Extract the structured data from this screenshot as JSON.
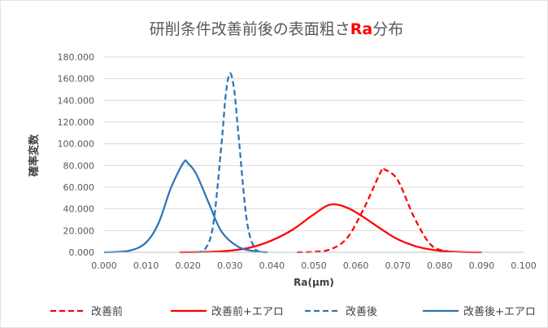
{
  "chart_data": {
    "type": "line",
    "title": "研削条件改善前後の表面粗さ",
    "title_highlight": "Ra",
    "title_suffix": "分布",
    "title_highlight_color": "#ff0000",
    "xlabel": "Ra(μm)",
    "ylabel": "確率変数",
    "xlim": [
      0,
      0.1
    ],
    "ylim": [
      0,
      180
    ],
    "x_ticks": [
      "0.000",
      "0.010",
      "0.020",
      "0.030",
      "0.040",
      "0.050",
      "0.060",
      "0.070",
      "0.080",
      "0.090",
      "0.100"
    ],
    "y_ticks": [
      "0.000",
      "20.000",
      "40.000",
      "60.000",
      "80.000",
      "100.000",
      "120.000",
      "140.000",
      "160.000",
      "180.000"
    ],
    "grid": "horizontal",
    "legend_position": "bottom",
    "series": [
      {
        "name": "改善前",
        "color": "#ff0000",
        "dash": "dashed",
        "x": [
          0.046,
          0.05,
          0.054,
          0.058,
          0.062,
          0.066,
          0.067,
          0.07,
          0.074,
          0.078,
          0.082
        ],
        "y": [
          0.0,
          0.5,
          2.8,
          13.5,
          41.0,
          74.5,
          76.0,
          66.5,
          31.5,
          6.5,
          0.8
        ]
      },
      {
        "name": "改善前+エアロ",
        "color": "#ff0000",
        "dash": "solid",
        "x": [
          0.018,
          0.025,
          0.03,
          0.035,
          0.04,
          0.045,
          0.05,
          0.054,
          0.058,
          0.062,
          0.066,
          0.07,
          0.075,
          0.08,
          0.085,
          0.09
        ],
        "y": [
          0.0,
          0.4,
          1.5,
          4.5,
          11.0,
          21.0,
          35.0,
          44.0,
          41.0,
          32.0,
          21.5,
          12.0,
          4.8,
          1.4,
          0.3,
          0.0
        ]
      },
      {
        "name": "改善後",
        "color": "#2e75b6",
        "dash": "dashed",
        "x": [
          0.022,
          0.024,
          0.026,
          0.028,
          0.029,
          0.03,
          0.031,
          0.032,
          0.034,
          0.036,
          0.038
        ],
        "y": [
          0.0,
          2.5,
          25.0,
          100.0,
          145.0,
          165.0,
          150.0,
          110.0,
          30.0,
          3.0,
          0.0
        ]
      },
      {
        "name": "改善後+エアロ",
        "color": "#2e75b6",
        "dash": "solid",
        "x": [
          0.0,
          0.006,
          0.01,
          0.013,
          0.016,
          0.019,
          0.02,
          0.022,
          0.025,
          0.028,
          0.032,
          0.036,
          0.039
        ],
        "y": [
          0.0,
          1.5,
          9.0,
          27.0,
          60.0,
          83.0,
          82.0,
          72.0,
          45.0,
          19.0,
          5.0,
          1.0,
          0.0
        ]
      }
    ]
  }
}
